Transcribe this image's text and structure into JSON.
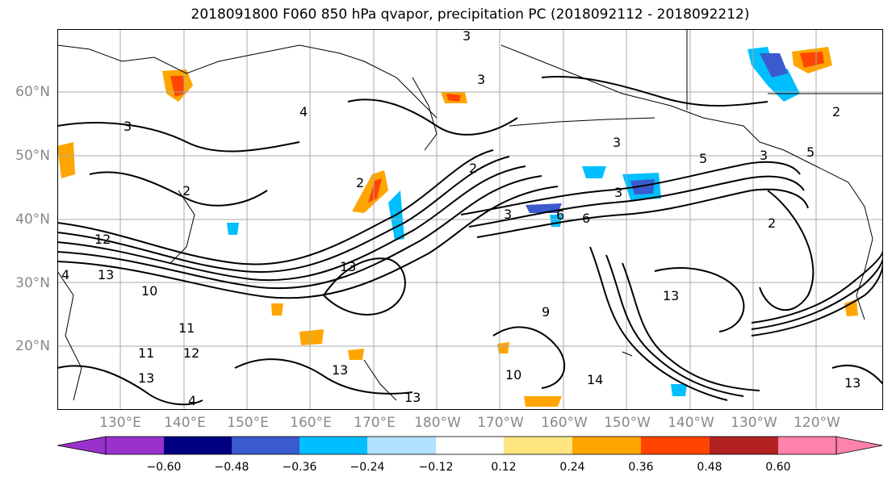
{
  "title": "2018091800 F060 850 hPa qvapor, precipitation PC (2018092112 - 2018092212)",
  "map": {
    "lat_labels": [
      "60°N",
      "50°N",
      "40°N",
      "30°N",
      "20°N"
    ],
    "lon_labels": [
      "130°E",
      "140°E",
      "150°E",
      "160°E",
      "170°E",
      "180°W",
      "170°W",
      "160°W",
      "150°W",
      "140°W",
      "130°W",
      "120°W"
    ],
    "contour_labels": [
      "3",
      "3",
      "4",
      "3",
      "2",
      "5",
      "5",
      "3",
      "2",
      "3",
      "3",
      "2",
      "12",
      "13",
      "10",
      "11",
      "12",
      "13",
      "14",
      "13",
      "10",
      "6",
      "6",
      "9",
      "13",
      "4",
      "2",
      "3",
      "2",
      "13",
      "4",
      "13",
      "13",
      "11"
    ]
  },
  "colorbar": {
    "ticks": [
      "−0.60",
      "−0.48",
      "−0.36",
      "−0.24",
      "−0.12",
      "0.12",
      "0.24",
      "0.36",
      "0.48",
      "0.60"
    ],
    "colors": [
      "#9932cc",
      "#000080",
      "#3a5acd",
      "#00bfff",
      "#b0e2ff",
      "#ffffff",
      "#ffe680",
      "#ffa500",
      "#ff4500",
      "#b22222",
      "#ff82ab"
    ]
  }
}
